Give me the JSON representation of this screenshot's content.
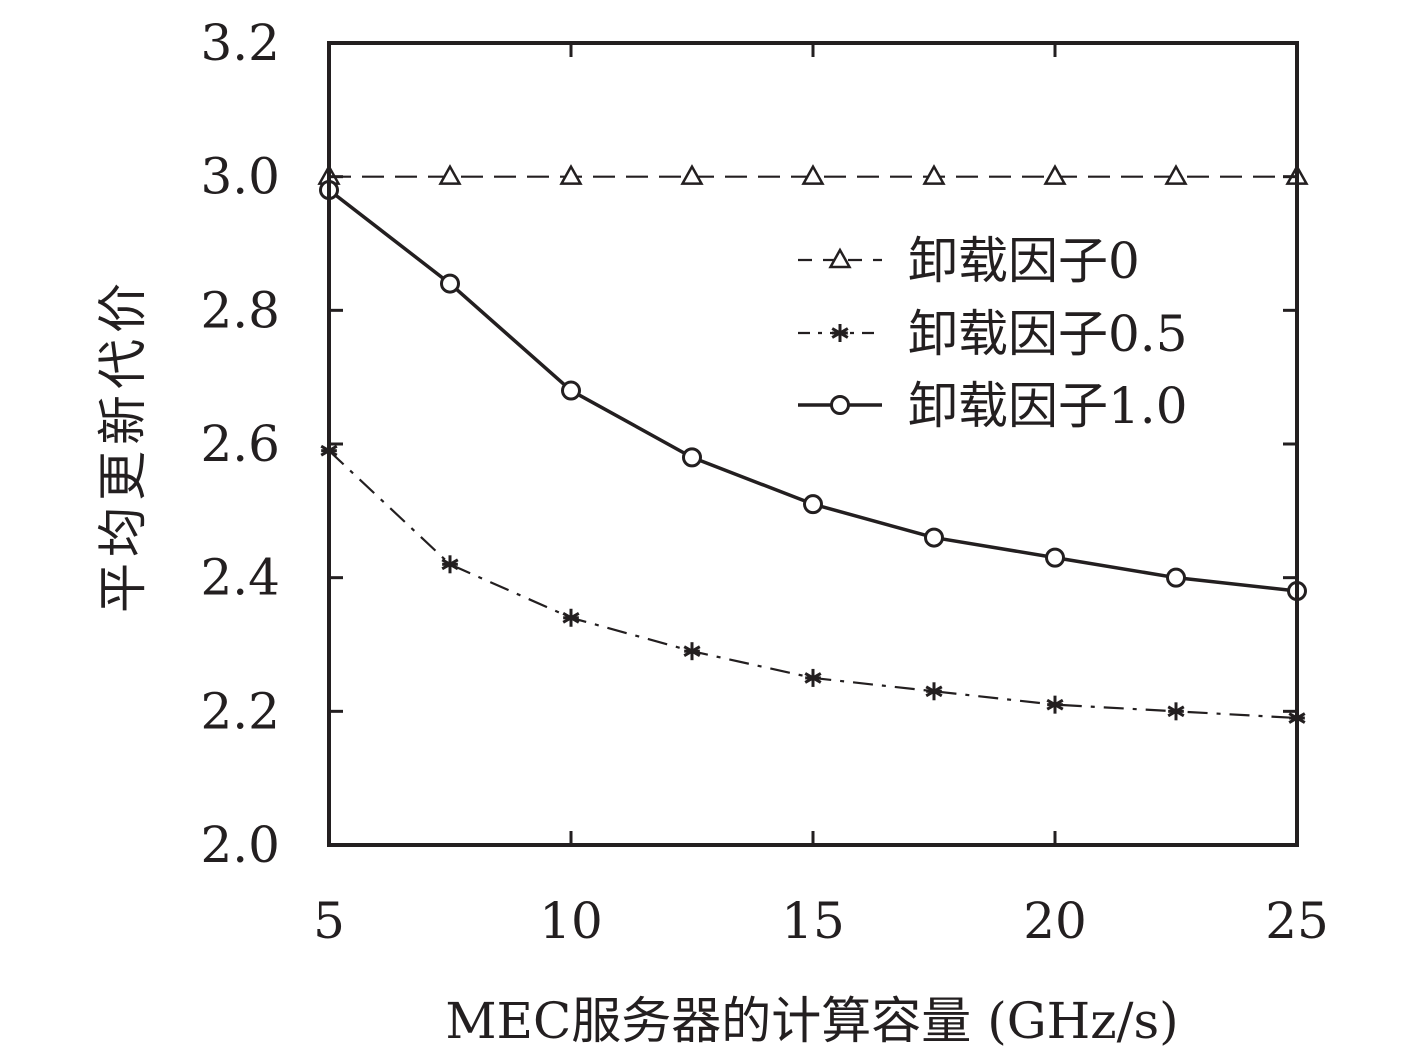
{
  "chart_data": {
    "type": "line",
    "title": "",
    "xlabel": "MEC服务器的计算容量 (GHz/s)",
    "ylabel": "平均更新代价",
    "xlim": [
      5,
      25
    ],
    "ylim": [
      2.0,
      3.2
    ],
    "xticks": [
      5,
      10,
      15,
      20,
      25
    ],
    "xtick_labels": [
      "5",
      "10",
      "15",
      "20",
      "25"
    ],
    "yticks": [
      2.0,
      2.2,
      2.4,
      2.6,
      2.8,
      3.0,
      3.2
    ],
    "ytick_labels": [
      "2.0",
      "2.2",
      "2.4",
      "2.6",
      "2.8",
      "3.0",
      "3.2"
    ],
    "grid": false,
    "legend_position": "right",
    "x": [
      5,
      7.5,
      10,
      12.5,
      15,
      17.5,
      20,
      22.5,
      25
    ],
    "series": [
      {
        "name": "卸载因子0",
        "marker": "triangle",
        "linestyle": "dashed",
        "values": [
          3.0,
          3.0,
          3.0,
          3.0,
          3.0,
          3.0,
          3.0,
          3.0,
          3.0
        ]
      },
      {
        "name": "卸载因子0.5",
        "marker": "asterisk",
        "linestyle": "dashdot",
        "values": [
          2.59,
          2.42,
          2.34,
          2.29,
          2.25,
          2.23,
          2.21,
          2.2,
          2.19
        ]
      },
      {
        "name": "卸载因子1.0",
        "marker": "circle",
        "linestyle": "solid",
        "values": [
          2.98,
          2.84,
          2.68,
          2.58,
          2.51,
          2.46,
          2.43,
          2.4,
          2.38
        ]
      }
    ]
  },
  "colors": {
    "ink": "#231f20",
    "background": "#ffffff"
  }
}
